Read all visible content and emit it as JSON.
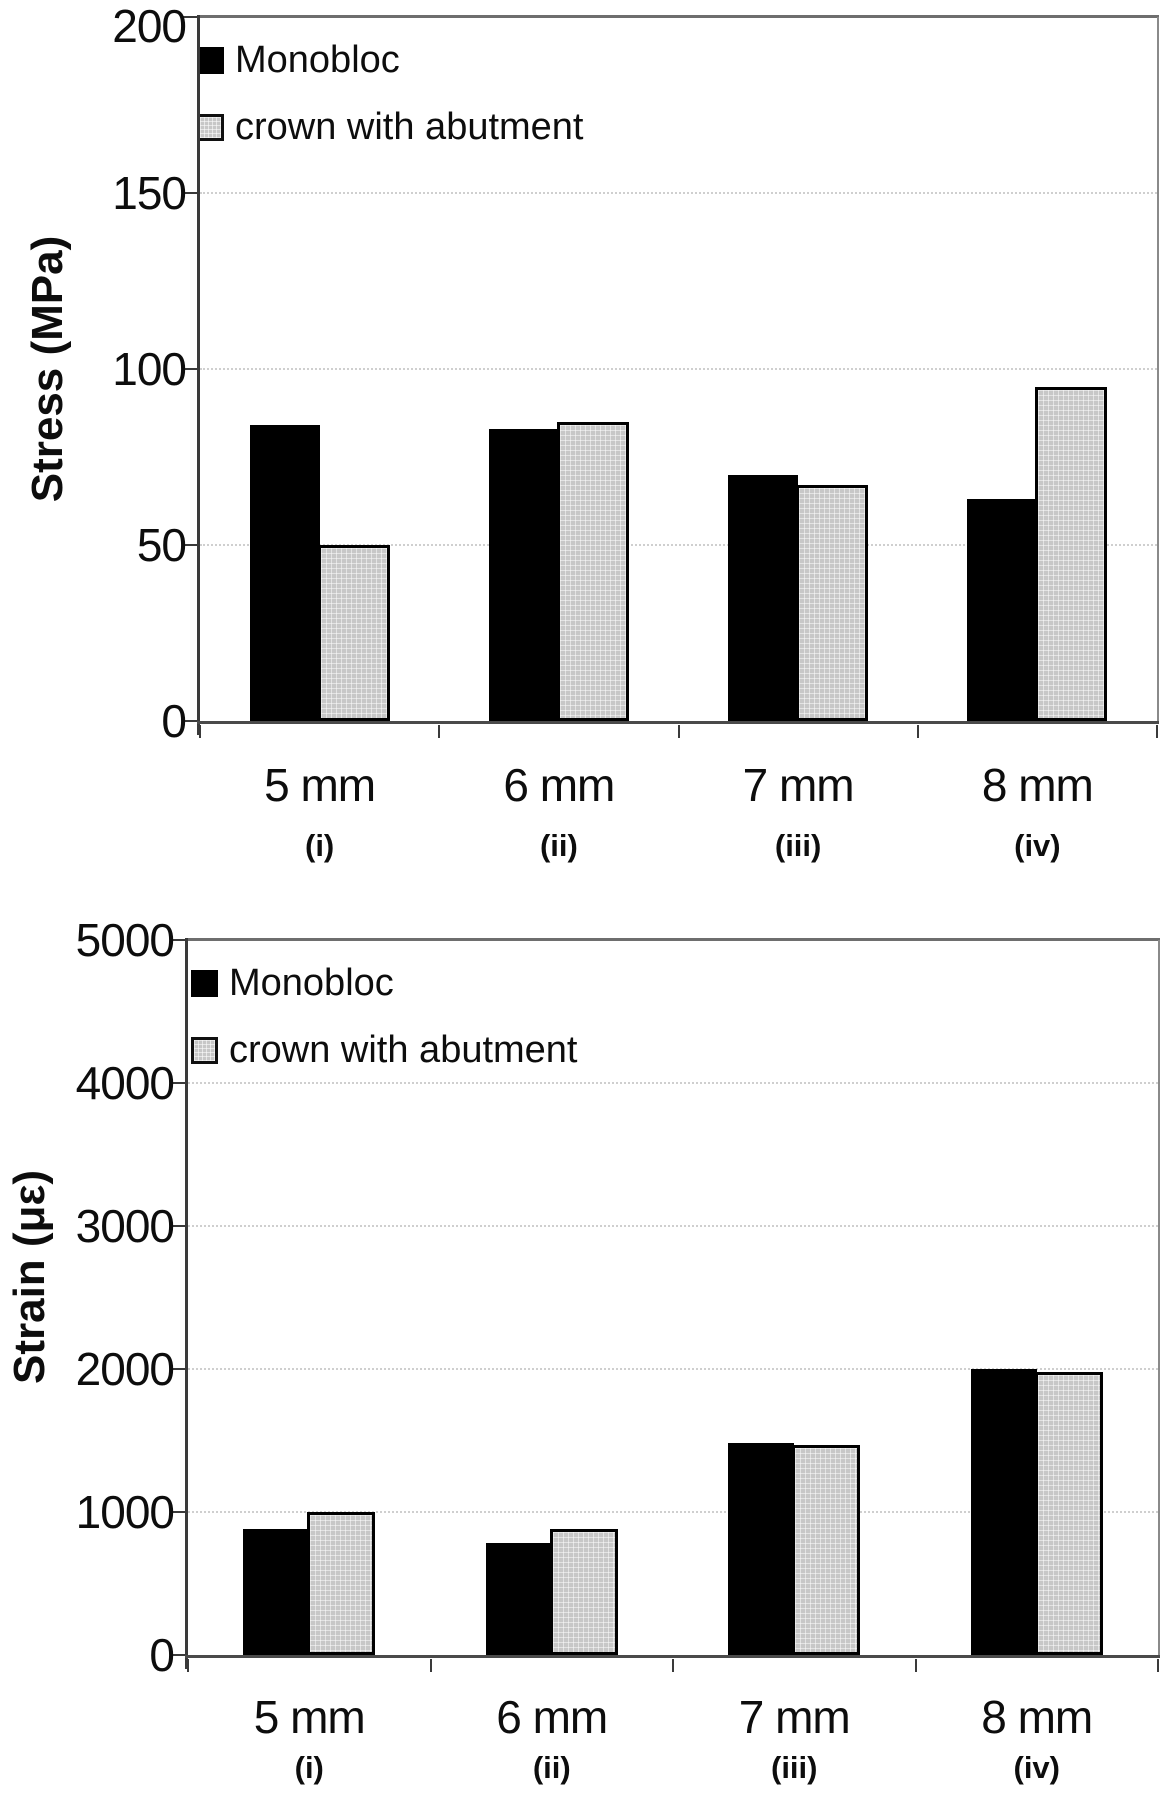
{
  "figure": {
    "background": "#ffffff"
  },
  "chart_data": [
    {
      "type": "bar",
      "title": "",
      "ylabel": "Stress (MPa)",
      "xlabel": "",
      "ylim": [
        0,
        200
      ],
      "yticks": [
        0,
        50,
        100,
        150,
        200
      ],
      "grid": "horizontal dotted lines at y ticks",
      "grid_color": "#cfcfcf",
      "axis_color": "#3a3a3a",
      "legend_position": "top-left inside plot",
      "categories": [
        "5 mm",
        "6 mm",
        "7 mm",
        "8 mm"
      ],
      "category_sublabels": [
        "(i)",
        "(ii)",
        "(iii)",
        "(iv)"
      ],
      "series": [
        {
          "name": "Monobloc",
          "color": "#000000",
          "pattern": "solid",
          "values": [
            84,
            83,
            70,
            63
          ]
        },
        {
          "name": "crown with abutment",
          "color": "#c7c7c7",
          "pattern": "crosshatch-grid",
          "values": [
            50,
            85,
            67,
            95
          ]
        }
      ]
    },
    {
      "type": "bar",
      "title": "",
      "ylabel": "Strain (με)",
      "xlabel": "",
      "ylim": [
        0,
        5000
      ],
      "yticks": [
        0,
        1000,
        2000,
        3000,
        4000,
        5000
      ],
      "grid": "horizontal dotted lines at y ticks",
      "grid_color": "#cfcfcf",
      "axis_color": "#3a3a3a",
      "legend_position": "top-left inside plot",
      "categories": [
        "5 mm",
        "6 mm",
        "7 mm",
        "8 mm"
      ],
      "category_sublabels": [
        "(i)",
        "(ii)",
        "(iii)",
        "(iv)"
      ],
      "series": [
        {
          "name": "Monobloc",
          "color": "#000000",
          "pattern": "solid",
          "values": [
            880,
            780,
            1480,
            2000
          ]
        },
        {
          "name": "crown with abutment",
          "color": "#c7c7c7",
          "pattern": "crosshatch-grid",
          "values": [
            1000,
            880,
            1470,
            1980
          ]
        }
      ]
    }
  ]
}
